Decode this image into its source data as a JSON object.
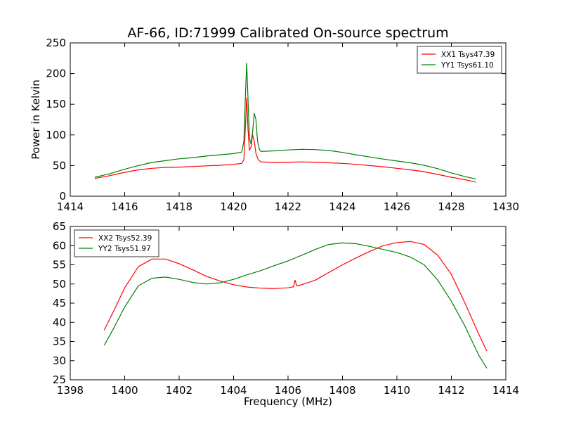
{
  "title": "AF-66, ID:71999 Calibrated On-source spectrum",
  "chart_data": [
    {
      "type": "line",
      "ylabel": "Power in Kelvin",
      "xlabel": "",
      "xlim": [
        1414,
        1430
      ],
      "ylim": [
        0,
        250
      ],
      "xticks": [
        "1414",
        "1416",
        "1418",
        "1420",
        "1422",
        "1424",
        "1426",
        "1428",
        "1430"
      ],
      "yticks": [
        "0",
        "50",
        "100",
        "150",
        "200",
        "250"
      ],
      "legend_position": "top-right",
      "series": [
        {
          "name": "XX1 Tsys47.39",
          "color": "#ff0000",
          "points": [
            [
              1414.9,
              29
            ],
            [
              1415.4,
              33
            ],
            [
              1416.0,
              39
            ],
            [
              1416.5,
              43
            ],
            [
              1417.0,
              45.5
            ],
            [
              1417.5,
              47
            ],
            [
              1418.0,
              47.5
            ],
            [
              1418.5,
              48.5
            ],
            [
              1419.0,
              49.5
            ],
            [
              1419.5,
              50.5
            ],
            [
              1420.0,
              52
            ],
            [
              1420.3,
              53.5
            ],
            [
              1420.38,
              60
            ],
            [
              1420.43,
              110
            ],
            [
              1420.48,
              160
            ],
            [
              1420.53,
              110
            ],
            [
              1420.58,
              75
            ],
            [
              1420.64,
              80
            ],
            [
              1420.7,
              100
            ],
            [
              1420.76,
              90
            ],
            [
              1420.82,
              70
            ],
            [
              1420.9,
              60
            ],
            [
              1421.0,
              56
            ],
            [
              1421.5,
              55
            ],
            [
              1422.0,
              55.5
            ],
            [
              1422.5,
              56
            ],
            [
              1423.0,
              55.5
            ],
            [
              1423.5,
              54.5
            ],
            [
              1424.0,
              53.5
            ],
            [
              1424.5,
              52
            ],
            [
              1425.0,
              50
            ],
            [
              1425.5,
              48
            ],
            [
              1426.0,
              45.5
            ],
            [
              1426.5,
              43
            ],
            [
              1427.0,
              40
            ],
            [
              1427.5,
              35.5
            ],
            [
              1428.0,
              31
            ],
            [
              1428.5,
              27
            ],
            [
              1428.9,
              23
            ]
          ]
        },
        {
          "name": "YY1 Tsys61.10",
          "color": "#008000",
          "points": [
            [
              1414.9,
              31
            ],
            [
              1415.4,
              36
            ],
            [
              1416.0,
              44
            ],
            [
              1416.5,
              50
            ],
            [
              1417.0,
              55
            ],
            [
              1417.5,
              58
            ],
            [
              1418.0,
              61
            ],
            [
              1418.5,
              63
            ],
            [
              1419.0,
              65.5
            ],
            [
              1419.5,
              67.5
            ],
            [
              1420.0,
              69.5
            ],
            [
              1420.3,
              72
            ],
            [
              1420.38,
              90
            ],
            [
              1420.43,
              160
            ],
            [
              1420.48,
              217
            ],
            [
              1420.53,
              160
            ],
            [
              1420.58,
              95
            ],
            [
              1420.64,
              85
            ],
            [
              1420.7,
              105
            ],
            [
              1420.76,
              135
            ],
            [
              1420.82,
              125
            ],
            [
              1420.88,
              90
            ],
            [
              1420.95,
              76
            ],
            [
              1421.0,
              73
            ],
            [
              1421.5,
              74
            ],
            [
              1422.0,
              75.5
            ],
            [
              1422.5,
              76.5
            ],
            [
              1423.0,
              76
            ],
            [
              1423.5,
              74.5
            ],
            [
              1424.0,
              71.5
            ],
            [
              1424.5,
              67.5
            ],
            [
              1425.0,
              64
            ],
            [
              1425.5,
              60.5
            ],
            [
              1426.0,
              57.5
            ],
            [
              1426.5,
              54.5
            ],
            [
              1427.0,
              50.5
            ],
            [
              1427.5,
              45
            ],
            [
              1428.0,
              38
            ],
            [
              1428.5,
              32
            ],
            [
              1428.9,
              28
            ]
          ]
        }
      ]
    },
    {
      "type": "line",
      "ylabel": "",
      "xlabel": "Frequency (MHz)",
      "xlim": [
        1398,
        1414
      ],
      "ylim": [
        25,
        65
      ],
      "xticks": [
        "1398",
        "1400",
        "1402",
        "1404",
        "1406",
        "1408",
        "1410",
        "1412",
        "1414"
      ],
      "yticks": [
        "25",
        "30",
        "35",
        "40",
        "45",
        "50",
        "55",
        "60",
        "65"
      ],
      "legend_position": "top-left",
      "series": [
        {
          "name": "XX2 Tsys52.39",
          "color": "#ff0000",
          "points": [
            [
              1399.25,
              38
            ],
            [
              1399.6,
              43
            ],
            [
              1400.0,
              49
            ],
            [
              1400.5,
              54.5
            ],
            [
              1401.0,
              56.5
            ],
            [
              1401.5,
              56.5
            ],
            [
              1402.0,
              55.3
            ],
            [
              1402.5,
              53.7
            ],
            [
              1403.0,
              52
            ],
            [
              1403.5,
              50.8
            ],
            [
              1404.0,
              49.8
            ],
            [
              1404.5,
              49.2
            ],
            [
              1405.0,
              48.9
            ],
            [
              1405.5,
              48.8
            ],
            [
              1406.0,
              49
            ],
            [
              1406.2,
              49.3
            ],
            [
              1406.26,
              51
            ],
            [
              1406.32,
              49.5
            ],
            [
              1406.5,
              49.8
            ],
            [
              1407.0,
              51
            ],
            [
              1407.5,
              53
            ],
            [
              1408.0,
              55
            ],
            [
              1408.5,
              56.8
            ],
            [
              1409.0,
              58.5
            ],
            [
              1409.5,
              60
            ],
            [
              1410.0,
              60.8
            ],
            [
              1410.5,
              61.1
            ],
            [
              1411.0,
              60.3
            ],
            [
              1411.5,
              57.5
            ],
            [
              1412.0,
              52.5
            ],
            [
              1412.5,
              45
            ],
            [
              1413.0,
              37
            ],
            [
              1413.3,
              32.5
            ]
          ]
        },
        {
          "name": "YY2 Tsys51.97",
          "color": "#008000",
          "points": [
            [
              1399.25,
              34
            ],
            [
              1399.6,
              38.5
            ],
            [
              1400.0,
              44
            ],
            [
              1400.5,
              49.5
            ],
            [
              1401.0,
              51.5
            ],
            [
              1401.5,
              51.8
            ],
            [
              1402.0,
              51.2
            ],
            [
              1402.5,
              50.4
            ],
            [
              1403.0,
              50
            ],
            [
              1403.5,
              50.3
            ],
            [
              1404.0,
              51.2
            ],
            [
              1404.5,
              52.4
            ],
            [
              1405.0,
              53.5
            ],
            [
              1405.5,
              54.8
            ],
            [
              1406.0,
              56
            ],
            [
              1406.5,
              57.5
            ],
            [
              1407.0,
              59
            ],
            [
              1407.5,
              60.3
            ],
            [
              1408.0,
              60.7
            ],
            [
              1408.5,
              60.5
            ],
            [
              1409.0,
              59.8
            ],
            [
              1409.5,
              59
            ],
            [
              1410.0,
              58.2
            ],
            [
              1410.5,
              57
            ],
            [
              1411.0,
              55
            ],
            [
              1411.5,
              51
            ],
            [
              1412.0,
              45.5
            ],
            [
              1412.5,
              39
            ],
            [
              1413.0,
              31.5
            ],
            [
              1413.3,
              28
            ]
          ]
        }
      ]
    }
  ]
}
